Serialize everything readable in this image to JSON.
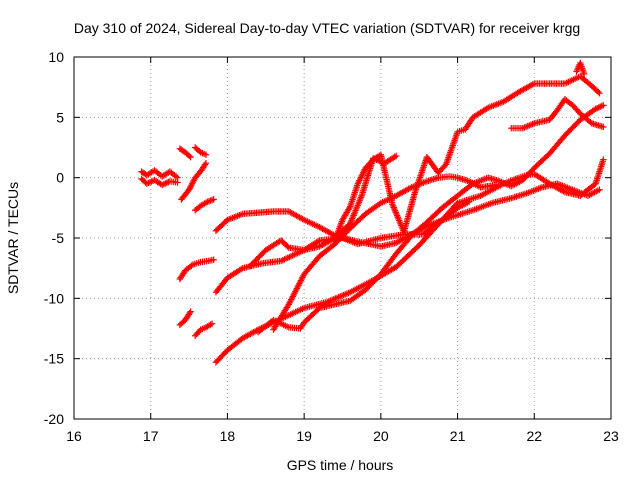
{
  "chart_data": {
    "type": "scatter",
    "title": "Day 310 of 2024, Sidereal Day-to-day VTEC variation (SDTVAR) for receiver krgg",
    "xlabel": "GPS time / hours",
    "ylabel": "SDTVAR / TECUs",
    "xlim": [
      16,
      23
    ],
    "ylim": [
      -20,
      10
    ],
    "xticks": [
      "16",
      "17",
      "18",
      "19",
      "20",
      "21",
      "22",
      "23"
    ],
    "yticks": [
      "10",
      "5",
      "0",
      "-5",
      "-10",
      "-15",
      "-20"
    ],
    "grid": true,
    "marker": "plus",
    "colors": {
      "series": "#ff0000",
      "grid": "#a0a0a0",
      "axis": "#000000"
    },
    "series": [
      {
        "x": [
          16.88,
          16.95,
          17.05,
          17.15,
          17.25,
          17.35
        ],
        "y": [
          0.5,
          0.2,
          0.6,
          0.1,
          0.5,
          0.0
        ]
      },
      {
        "x": [
          16.88,
          16.95,
          17.05,
          17.15,
          17.25,
          17.35
        ],
        "y": [
          -0.1,
          -0.5,
          -0.2,
          -0.6,
          -0.3,
          -0.4
        ]
      },
      {
        "x": [
          17.38,
          17.45,
          17.52
        ],
        "y": [
          2.4,
          2.1,
          1.7
        ]
      },
      {
        "x": [
          17.58,
          17.65,
          17.72
        ],
        "y": [
          2.5,
          2.1,
          1.9
        ]
      },
      {
        "x": [
          17.4,
          17.5,
          17.58,
          17.66,
          17.72
        ],
        "y": [
          -1.8,
          -1.0,
          0.0,
          0.6,
          1.2
        ]
      },
      {
        "x": [
          17.58,
          17.66,
          17.74,
          17.82
        ],
        "y": [
          -2.7,
          -2.3,
          -2.0,
          -1.8
        ]
      },
      {
        "x": [
          17.38,
          17.45,
          17.55,
          17.65,
          17.75,
          17.82
        ],
        "y": [
          -8.4,
          -7.7,
          -7.2,
          -7.0,
          -6.9,
          -6.8
        ]
      },
      {
        "x": [
          17.38,
          17.45,
          17.52
        ],
        "y": [
          -12.2,
          -11.8,
          -11.1
        ]
      },
      {
        "x": [
          17.58,
          17.65,
          17.72,
          17.8
        ],
        "y": [
          -13.1,
          -12.6,
          -12.4,
          -12.1
        ]
      },
      {
        "x": [
          17.85,
          18.0,
          18.2,
          18.4,
          18.6,
          18.8,
          19.0,
          19.2,
          19.4,
          19.7,
          20.0,
          20.2,
          20.4,
          20.6,
          20.9,
          21.2,
          21.45,
          21.7,
          21.9,
          22.1,
          22.3,
          22.5,
          22.7,
          22.85
        ],
        "y": [
          -4.4,
          -3.5,
          -3.0,
          -2.9,
          -2.8,
          -2.8,
          -3.5,
          -4.1,
          -4.8,
          -5.3,
          -5.7,
          -5.4,
          -4.7,
          -4.0,
          -3.3,
          -2.7,
          -2.1,
          -1.7,
          -1.3,
          -0.8,
          -0.5,
          -1.0,
          -1.5,
          -1.0
        ]
      },
      {
        "x": [
          17.85,
          18.0,
          18.2,
          18.45,
          18.7,
          19.0,
          19.2,
          19.5,
          19.7,
          20.0,
          20.3,
          20.55,
          20.8,
          21.0,
          21.15
        ],
        "y": [
          -9.5,
          -8.3,
          -7.5,
          -7.1,
          -6.9,
          -6.0,
          -5.2,
          -5.0,
          -5.5,
          -5.0,
          -4.7,
          -4.7,
          -3.5,
          -2.5,
          -2.0
        ]
      },
      {
        "x": [
          17.85,
          18.0,
          18.2,
          18.4,
          18.6,
          18.8,
          19.0,
          19.3,
          19.6,
          19.9,
          20.2,
          20.5,
          20.8,
          21.0,
          21.3,
          21.6,
          21.8,
          21.9,
          22.0,
          22.2,
          22.4,
          22.6,
          22.8,
          22.9
        ],
        "y": [
          -15.3,
          -14.3,
          -13.3,
          -12.6,
          -12.0,
          -11.4,
          -10.8,
          -10.3,
          -9.5,
          -8.5,
          -7.4,
          -5.6,
          -3.5,
          -2.1,
          -1.5,
          -0.5,
          0.0,
          0.2,
          0.3,
          -0.5,
          -1.2,
          -1.5,
          -0.5,
          1.5
        ]
      },
      {
        "x": [
          18.4,
          18.6,
          18.8,
          18.95,
          19.0,
          19.2,
          19.4,
          19.6,
          19.8,
          20.0,
          20.2,
          20.4,
          20.6,
          20.8,
          21.0,
          21.2,
          21.4,
          21.55,
          21.7,
          21.85,
          22.0,
          22.2,
          22.4,
          22.6,
          22.8,
          22.9
        ],
        "y": [
          -12.8,
          -11.8,
          -12.4,
          -12.5,
          -12.0,
          -10.8,
          -10.5,
          -10.2,
          -9.3,
          -8.0,
          -6.3,
          -4.8,
          -3.7,
          -2.5,
          -1.5,
          -0.5,
          0.0,
          -0.3,
          -0.7,
          -0.2,
          0.8,
          2.0,
          3.5,
          4.8,
          5.7,
          6.0
        ]
      },
      {
        "x": [
          18.6,
          18.8,
          19.0,
          19.2,
          19.4,
          19.6,
          19.8,
          20.0,
          20.2,
          20.4,
          20.6,
          20.75,
          20.9,
          21.0,
          21.15,
          21.3,
          21.5
        ],
        "y": [
          -12.6,
          -10.5,
          -8.0,
          -6.5,
          -5.5,
          -4.2,
          -3.0,
          -2.1,
          -1.5,
          -0.8,
          -0.3,
          0.0,
          0.1,
          0.0,
          -0.3,
          -0.8,
          -0.6
        ]
      },
      {
        "x": [
          18.3,
          18.5,
          18.7,
          18.8,
          19.0,
          19.2,
          19.4,
          19.6,
          19.75,
          19.9,
          20.05,
          20.2
        ],
        "y": [
          -7.3,
          -6.0,
          -5.2,
          -5.8,
          -6.0,
          -5.7,
          -5.0,
          -3.8,
          -1.5,
          1.6,
          1.2,
          1.8
        ]
      },
      {
        "x": [
          19.4,
          19.5,
          19.6,
          19.7,
          19.8,
          19.9,
          20.0,
          20.15,
          20.3,
          20.45,
          20.6,
          20.75,
          20.85,
          21.0,
          21.1,
          21.2,
          21.4,
          21.6,
          21.8,
          22.0,
          22.2,
          22.4,
          22.6,
          22.75,
          22.85
        ],
        "y": [
          -5.2,
          -3.5,
          -2.4,
          -0.5,
          0.8,
          1.5,
          1.9,
          -2.2,
          -4.5,
          -1.1,
          1.7,
          0.4,
          1.1,
          3.8,
          4.0,
          5.0,
          5.8,
          6.3,
          7.1,
          7.8,
          7.8,
          7.8,
          8.4,
          7.6,
          7.0
        ]
      },
      {
        "x": [
          21.7,
          21.85,
          22.0,
          22.2,
          22.3,
          22.4,
          22.5,
          22.6,
          22.75,
          22.9
        ],
        "y": [
          4.1,
          4.1,
          4.5,
          4.8,
          5.6,
          6.5,
          6.0,
          5.3,
          4.5,
          4.2
        ]
      },
      {
        "x": [
          22.55,
          22.6,
          22.65
        ],
        "y": [
          8.8,
          9.5,
          8.6
        ]
      }
    ]
  }
}
